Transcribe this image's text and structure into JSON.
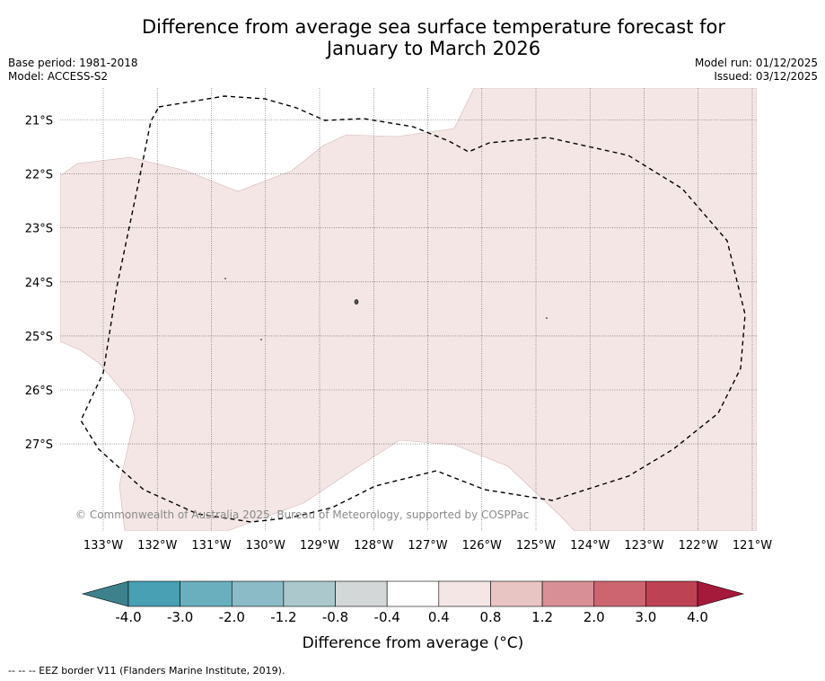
{
  "title": {
    "line1": "Difference from average sea surface temperature forecast for",
    "line2": "January to March 2026"
  },
  "meta_left": {
    "base_period": "Base period: 1981-2018",
    "model": "Model: ACCESS-S2"
  },
  "meta_right": {
    "model_run": "Model run: 01/12/2025",
    "issued": "Issued: 03/12/2025"
  },
  "map": {
    "lat_labels": [
      "21°S",
      "22°S",
      "23°S",
      "24°S",
      "25°S",
      "26°S",
      "27°S"
    ],
    "lon_labels": [
      "133°W",
      "132°W",
      "131°W",
      "130°W",
      "129°W",
      "128°W",
      "127°W",
      "126°W",
      "125°W",
      "124°W",
      "123°W",
      "122°W",
      "121°W"
    ],
    "anomaly_fill_color": "#f3e6e5",
    "anomaly_range": "0.4 to 0.8",
    "copyright": "© Commonwealth of Australia 2025, Bureau of Meteorology, supported by COSPPac"
  },
  "colorbar": {
    "bins": [
      {
        "from": -4.0,
        "to": -3.0,
        "color": "#47a0b3"
      },
      {
        "from": -3.0,
        "to": -2.0,
        "color": "#6aafbe"
      },
      {
        "from": -2.0,
        "to": -1.2,
        "color": "#8bbbc6"
      },
      {
        "from": -1.2,
        "to": -0.8,
        "color": "#abc9cd"
      },
      {
        "from": -0.8,
        "to": -0.4,
        "color": "#d3d7d8"
      },
      {
        "from": -0.4,
        "to": 0.4,
        "color": "#ffffff"
      },
      {
        "from": 0.4,
        "to": 0.8,
        "color": "#f3e6e5"
      },
      {
        "from": 0.8,
        "to": 1.2,
        "color": "#e8c5c3"
      },
      {
        "from": 1.2,
        "to": 2.0,
        "color": "#d98f96"
      },
      {
        "from": 2.0,
        "to": 3.0,
        "color": "#cc6570"
      },
      {
        "from": 3.0,
        "to": 4.0,
        "color": "#bd4354"
      }
    ],
    "under_color": "#3d818c",
    "over_color": "#a5193a",
    "tick_labels": [
      "-4.0",
      "-3.0",
      "-2.0",
      "-1.2",
      "-0.8",
      "-0.4",
      "0.4",
      "0.8",
      "1.2",
      "2.0",
      "3.0",
      "4.0"
    ],
    "label": "Difference from average (°C)"
  },
  "footnote": "--  --  -- EEZ border V11 (Flanders Marine Institute, 2019)."
}
